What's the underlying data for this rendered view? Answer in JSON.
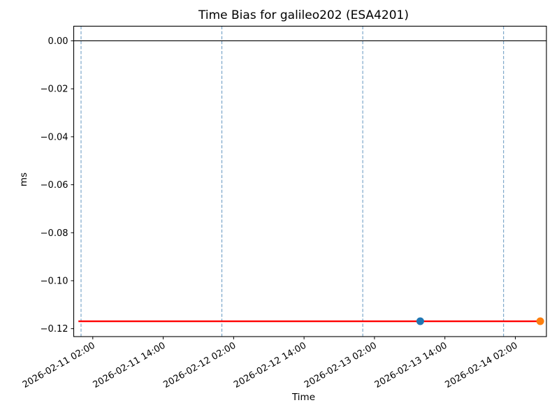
{
  "figure": {
    "background": "#ffffff"
  },
  "chart_data": {
    "type": "line",
    "title": "Time Bias for galileo202 (ESA4201)",
    "xlabel": "Time",
    "ylabel": "ms",
    "ylim": [
      -0.1233,
      0.0061
    ],
    "yticks": [
      0.0,
      -0.02,
      -0.04,
      -0.06,
      -0.08,
      -0.1,
      -0.12
    ],
    "ytick_labels": [
      "0.00",
      "−0.02",
      "−0.04",
      "−0.06",
      "−0.08",
      "−0.10",
      "−0.12"
    ],
    "x_axis": {
      "epoch": "2026-02-11 00:00",
      "unit": "hours-since-epoch",
      "xlim_hours": [
        -1.25,
        79.3
      ],
      "ticks_hours": [
        2,
        14,
        26,
        38,
        50,
        62,
        74
      ],
      "tick_labels": [
        "2026-02-11 02:00",
        "2026-02-11 14:00",
        "2026-02-12 02:00",
        "2026-02-12 14:00",
        "2026-02-13 02:00",
        "2026-02-13 14:00",
        "2026-02-14 02:00"
      ],
      "gridlines_hours": [
        0,
        24,
        48,
        72
      ],
      "gridline_times": [
        "2026-02-11 00:00",
        "2026-02-12 00:00",
        "2026-02-13 00:00",
        "2026-02-14 00:00"
      ]
    },
    "reference_line": {
      "y_ms": 0.0,
      "color": "#000000"
    },
    "series": [
      {
        "name": "bias-line",
        "kind": "line",
        "color": "#ff0000",
        "x_hours": [
          -0.45,
          78.25
        ],
        "y_ms": [
          -0.1169,
          -0.1169
        ],
        "time_span": [
          "2026-02-10 23:30",
          "2026-02-14 06:15"
        ]
      },
      {
        "name": "point-blue",
        "kind": "point",
        "color": "#1f77b4",
        "x_hours": 57.8,
        "y_ms": -0.1169,
        "time": "2026-02-13 09:50"
      },
      {
        "name": "point-orange",
        "kind": "point",
        "color": "#ff7f0e",
        "x_hours": 78.25,
        "y_ms": -0.1169,
        "time": "2026-02-14 06:15"
      }
    ],
    "style": {
      "grid_color": "#4682b4",
      "grid_dash": "4.5 2.6",
      "axis_color": "#000000",
      "marker_radius": 5.5,
      "line_width": 2.4,
      "legend": "none",
      "grid": "vertical-only"
    }
  }
}
